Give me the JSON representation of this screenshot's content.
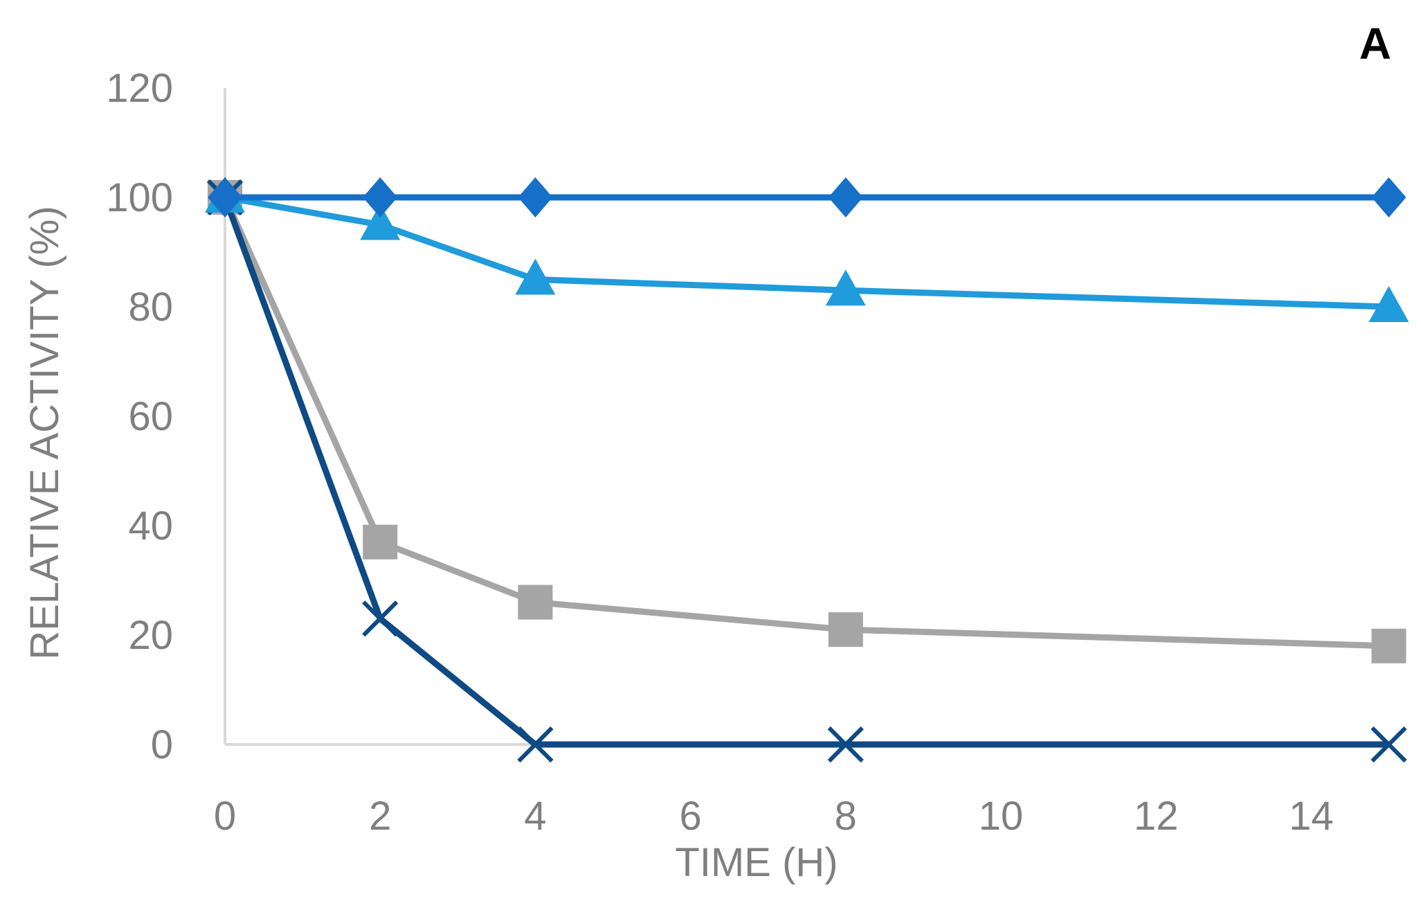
{
  "panel_label": "A",
  "chart_data": {
    "type": "line",
    "xlabel": "TIME (H)",
    "ylabel": "RELATIVE ACTIVITY (%)",
    "xlim": [
      0,
      15
    ],
    "ylim": [
      0,
      120
    ],
    "x_ticks": [
      0,
      2,
      4,
      6,
      8,
      10,
      12,
      14
    ],
    "y_ticks": [
      0,
      20,
      40,
      60,
      80,
      100,
      120
    ],
    "grid": false,
    "legend": "none",
    "x": [
      0,
      2,
      4,
      8,
      15
    ],
    "series": [
      {
        "values": [
          100,
          37,
          26,
          21,
          18
        ],
        "color": "#a5a5a5",
        "marker": "square"
      },
      {
        "values": [
          100,
          23,
          0,
          0,
          0
        ],
        "color": "#0e4a83",
        "marker": "x"
      },
      {
        "values": [
          100,
          95,
          85,
          83,
          80
        ],
        "color": "#209bdb",
        "marker": "triangle"
      },
      {
        "values": [
          100,
          100,
          100,
          100,
          100
        ],
        "color": "#1770c8",
        "marker": "diamond"
      }
    ]
  }
}
